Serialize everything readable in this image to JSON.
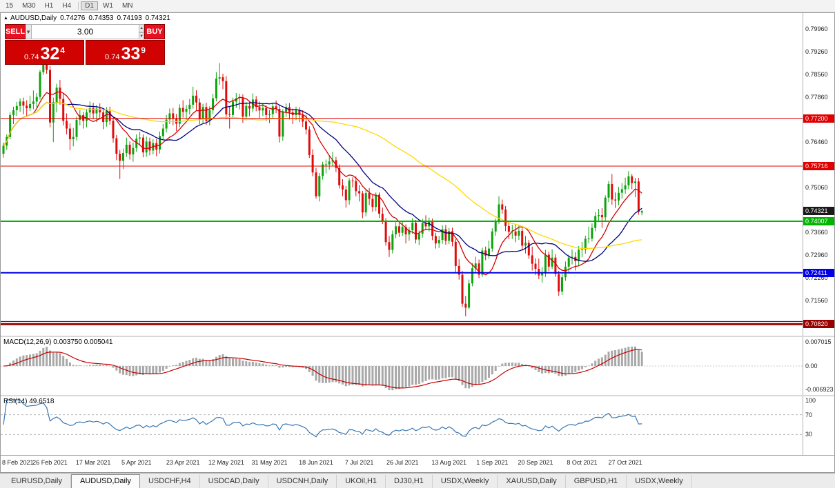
{
  "toolbar": {
    "timeframes": [
      "15",
      "M30",
      "H1",
      "H4",
      "D1",
      "W1",
      "MN"
    ],
    "active": "D1"
  },
  "header": {
    "symbol": "AUDUSD,Daily",
    "open": "0.74276",
    "high": "0.74353",
    "low": "0.74193",
    "close": "0.74321"
  },
  "one_click": {
    "volume": "3.00",
    "sell": {
      "label": "SELL",
      "small": "0.74",
      "big": "32",
      "sup": "4"
    },
    "buy": {
      "label": "BUY",
      "small": "0.74",
      "big": "33",
      "sup": "9"
    }
  },
  "main_chart": {
    "price_top": 0.8046,
    "price_bottom": 0.7046,
    "ticks": [
      "0.79960",
      "0.79260",
      "0.78560",
      "0.77860",
      "0.76460",
      "0.75060",
      "0.73660",
      "0.72960",
      "0.72260",
      "0.71560"
    ],
    "lines": [
      {
        "price": 0.772,
        "label": "0.77200",
        "color": "#e00000",
        "width": 1
      },
      {
        "price": 0.75716,
        "label": "0.75716",
        "color": "#e00000",
        "width": 1
      },
      {
        "price": 0.74007,
        "label": "0.74007",
        "color": "#00b400",
        "width": 2
      },
      {
        "price": 0.72411,
        "label": "0.72411",
        "color": "#0000e6",
        "width": 2
      },
      {
        "price": 0.709,
        "label": "",
        "color": "#000080",
        "width": 1
      },
      {
        "price": 0.7082,
        "label": "0.70820",
        "color": "#990000",
        "width": 3
      }
    ],
    "current_price": {
      "value": 0.74321,
      "label": "0.74321",
      "color": "#1a1a1a"
    },
    "candle_colors": {
      "up": "#0ca30c",
      "down": "#e00b0b"
    },
    "moving_averages": [
      {
        "period": 10,
        "color": "#d40000"
      },
      {
        "period": 20,
        "color": "#000080"
      },
      {
        "period": 60,
        "color": "#ffd800"
      }
    ]
  },
  "chart_data": {
    "type": "candlestick",
    "symbol": "AUDUSD",
    "timeframe": "Daily",
    "x_labels": [
      {
        "text": "8 Feb 2021",
        "bar": 0
      },
      {
        "text": "26 Feb 2021",
        "bar": 14
      },
      {
        "text": "17 Mar 2021",
        "bar": 27
      },
      {
        "text": "5 Apr 2021",
        "bar": 40
      },
      {
        "text": "23 Apr 2021",
        "bar": 54
      },
      {
        "text": "12 May 2021",
        "bar": 67
      },
      {
        "text": "31 May 2021",
        "bar": 80
      },
      {
        "text": "18 Jun 2021",
        "bar": 94
      },
      {
        "text": "7 Jul 2021",
        "bar": 107
      },
      {
        "text": "26 Jul 2021",
        "bar": 120
      },
      {
        "text": "13 Aug 2021",
        "bar": 134
      },
      {
        "text": "1 Sep 2021",
        "bar": 147
      },
      {
        "text": "20 Sep 2021",
        "bar": 160
      },
      {
        "text": "8 Oct 2021",
        "bar": 174
      },
      {
        "text": "27 Oct 2021",
        "bar": 187
      }
    ],
    "candles": [
      [
        0.761,
        0.7645,
        0.7598,
        0.7635
      ],
      [
        0.7635,
        0.767,
        0.7622,
        0.7662
      ],
      [
        0.7662,
        0.7738,
        0.7655,
        0.773
      ],
      [
        0.773,
        0.7756,
        0.7702,
        0.7745
      ],
      [
        0.7745,
        0.7771,
        0.7727,
        0.7758
      ],
      [
        0.7758,
        0.7782,
        0.774,
        0.7772
      ],
      [
        0.7772,
        0.7784,
        0.7732,
        0.7759
      ],
      [
        0.7759,
        0.7776,
        0.7726,
        0.7751
      ],
      [
        0.7751,
        0.779,
        0.7742,
        0.7764
      ],
      [
        0.7764,
        0.7806,
        0.7748,
        0.7772
      ],
      [
        0.7772,
        0.7798,
        0.7753,
        0.7786
      ],
      [
        0.7786,
        0.787,
        0.7778,
        0.7863
      ],
      [
        0.7863,
        0.7948,
        0.7854,
        0.7902
      ],
      [
        0.7902,
        0.7961,
        0.7858,
        0.787
      ],
      [
        0.787,
        0.7882,
        0.7692,
        0.7707
      ],
      [
        0.7707,
        0.7784,
        0.7646,
        0.777
      ],
      [
        0.777,
        0.7827,
        0.7738,
        0.7815
      ],
      [
        0.7815,
        0.7839,
        0.7762,
        0.778
      ],
      [
        0.778,
        0.7796,
        0.7698,
        0.7712
      ],
      [
        0.7712,
        0.7735,
        0.767,
        0.7688
      ],
      [
        0.7688,
        0.7704,
        0.7621,
        0.7655
      ],
      [
        0.7655,
        0.769,
        0.7633,
        0.7662
      ],
      [
        0.7662,
        0.7725,
        0.7651,
        0.7715
      ],
      [
        0.7715,
        0.7746,
        0.7698,
        0.773
      ],
      [
        0.773,
        0.774,
        0.7688,
        0.7712
      ],
      [
        0.7712,
        0.7747,
        0.7692,
        0.7738
      ],
      [
        0.7738,
        0.7772,
        0.772,
        0.7752
      ],
      [
        0.7752,
        0.7768,
        0.7717,
        0.7735
      ],
      [
        0.7735,
        0.7761,
        0.7708,
        0.775
      ],
      [
        0.775,
        0.7766,
        0.7721,
        0.7738
      ],
      [
        0.7738,
        0.775,
        0.7686,
        0.7708
      ],
      [
        0.7708,
        0.7755,
        0.7694,
        0.7742
      ],
      [
        0.7742,
        0.7756,
        0.77,
        0.7712
      ],
      [
        0.7712,
        0.7722,
        0.7645,
        0.7658
      ],
      [
        0.7658,
        0.7668,
        0.759,
        0.761
      ],
      [
        0.761,
        0.7622,
        0.7532,
        0.7588
      ],
      [
        0.7588,
        0.7626,
        0.7562,
        0.7612
      ],
      [
        0.7612,
        0.766,
        0.76,
        0.7638
      ],
      [
        0.7638,
        0.7648,
        0.7592,
        0.7608
      ],
      [
        0.7608,
        0.7645,
        0.7585,
        0.7628
      ],
      [
        0.7628,
        0.767,
        0.7616,
        0.7657
      ],
      [
        0.7657,
        0.7678,
        0.7637,
        0.766
      ],
      [
        0.766,
        0.767,
        0.7599,
        0.7614
      ],
      [
        0.7614,
        0.7663,
        0.7601,
        0.7648
      ],
      [
        0.7648,
        0.766,
        0.7605,
        0.762
      ],
      [
        0.762,
        0.7655,
        0.7608,
        0.7643
      ],
      [
        0.7643,
        0.7655,
        0.7602,
        0.7623
      ],
      [
        0.7623,
        0.7679,
        0.7611,
        0.7665
      ],
      [
        0.7665,
        0.7702,
        0.7652,
        0.7688
      ],
      [
        0.7688,
        0.773,
        0.7676,
        0.7716
      ],
      [
        0.7716,
        0.775,
        0.7702,
        0.7735
      ],
      [
        0.7735,
        0.7752,
        0.7698,
        0.7718
      ],
      [
        0.7718,
        0.7733,
        0.768,
        0.7703
      ],
      [
        0.7703,
        0.7763,
        0.7692,
        0.7752
      ],
      [
        0.7752,
        0.7776,
        0.7722,
        0.774
      ],
      [
        0.774,
        0.7761,
        0.7715,
        0.7749
      ],
      [
        0.7749,
        0.778,
        0.7731,
        0.7762
      ],
      [
        0.7762,
        0.7818,
        0.775,
        0.779
      ],
      [
        0.779,
        0.7807,
        0.7745,
        0.7769
      ],
      [
        0.7769,
        0.7782,
        0.7701,
        0.7716
      ],
      [
        0.7716,
        0.7765,
        0.7706,
        0.7755
      ],
      [
        0.7755,
        0.7768,
        0.77,
        0.7712
      ],
      [
        0.7712,
        0.7757,
        0.7698,
        0.7745
      ],
      [
        0.7745,
        0.7796,
        0.7733,
        0.7782
      ],
      [
        0.7782,
        0.7863,
        0.7772,
        0.7843
      ],
      [
        0.7843,
        0.7891,
        0.7824,
        0.7847
      ],
      [
        0.7847,
        0.7858,
        0.781,
        0.7835
      ],
      [
        0.7835,
        0.7851,
        0.7717,
        0.7732
      ],
      [
        0.7732,
        0.7758,
        0.7688,
        0.773
      ],
      [
        0.773,
        0.7784,
        0.772,
        0.7772
      ],
      [
        0.7772,
        0.7798,
        0.7752,
        0.7782
      ],
      [
        0.7782,
        0.7796,
        0.7747,
        0.7785
      ],
      [
        0.7785,
        0.7794,
        0.7706,
        0.7725
      ],
      [
        0.7725,
        0.777,
        0.7713,
        0.7758
      ],
      [
        0.7758,
        0.7772,
        0.7726,
        0.775
      ],
      [
        0.775,
        0.7797,
        0.7738,
        0.7778
      ],
      [
        0.7778,
        0.7789,
        0.7742,
        0.7755
      ],
      [
        0.7755,
        0.7772,
        0.772,
        0.7744
      ],
      [
        0.7744,
        0.7768,
        0.7727,
        0.7752
      ],
      [
        0.7752,
        0.776,
        0.7712,
        0.773
      ],
      [
        0.773,
        0.7746,
        0.7705,
        0.7733
      ],
      [
        0.7733,
        0.7768,
        0.7721,
        0.7757
      ],
      [
        0.7757,
        0.7775,
        0.7736,
        0.7749
      ],
      [
        0.7749,
        0.7762,
        0.7645,
        0.7663
      ],
      [
        0.7663,
        0.7748,
        0.765,
        0.774
      ],
      [
        0.774,
        0.7766,
        0.7724,
        0.7755
      ],
      [
        0.7755,
        0.7767,
        0.7716,
        0.7738
      ],
      [
        0.7738,
        0.775,
        0.7702,
        0.773
      ],
      [
        0.773,
        0.7756,
        0.7714,
        0.7745
      ],
      [
        0.7745,
        0.7755,
        0.7708,
        0.773
      ],
      [
        0.773,
        0.7745,
        0.7693,
        0.771
      ],
      [
        0.771,
        0.773,
        0.767,
        0.7685
      ],
      [
        0.7685,
        0.7695,
        0.7597,
        0.7606
      ],
      [
        0.7606,
        0.7624,
        0.754,
        0.7552
      ],
      [
        0.7552,
        0.7566,
        0.7471,
        0.7478
      ],
      [
        0.7478,
        0.755,
        0.7462,
        0.7541
      ],
      [
        0.7541,
        0.7585,
        0.753,
        0.7577
      ],
      [
        0.7577,
        0.7592,
        0.7549,
        0.7577
      ],
      [
        0.7577,
        0.7604,
        0.7561,
        0.7586
      ],
      [
        0.7586,
        0.7616,
        0.7571,
        0.759
      ],
      [
        0.759,
        0.76,
        0.7553,
        0.7566
      ],
      [
        0.7566,
        0.7577,
        0.7502,
        0.7512
      ],
      [
        0.7512,
        0.7531,
        0.7478,
        0.7499
      ],
      [
        0.7499,
        0.751,
        0.7443,
        0.7466
      ],
      [
        0.7466,
        0.7534,
        0.7452,
        0.7527
      ],
      [
        0.7527,
        0.7537,
        0.7506,
        0.7525
      ],
      [
        0.7525,
        0.754,
        0.7478,
        0.7494
      ],
      [
        0.7494,
        0.7513,
        0.7462,
        0.7487
      ],
      [
        0.7487,
        0.7495,
        0.741,
        0.7428
      ],
      [
        0.7428,
        0.7497,
        0.7416,
        0.7488
      ],
      [
        0.7488,
        0.7503,
        0.7451,
        0.747
      ],
      [
        0.747,
        0.7485,
        0.743,
        0.7445
      ],
      [
        0.7445,
        0.749,
        0.7432,
        0.7483
      ],
      [
        0.7483,
        0.749,
        0.7411,
        0.7424
      ],
      [
        0.7424,
        0.7443,
        0.7392,
        0.7401
      ],
      [
        0.7401,
        0.741,
        0.7325,
        0.7336
      ],
      [
        0.7336,
        0.7355,
        0.729,
        0.7312
      ],
      [
        0.7312,
        0.7372,
        0.7301,
        0.736
      ],
      [
        0.736,
        0.7398,
        0.7348,
        0.7385
      ],
      [
        0.7385,
        0.7395,
        0.7352,
        0.7365
      ],
      [
        0.7365,
        0.74,
        0.7355,
        0.7383
      ],
      [
        0.7383,
        0.7391,
        0.7332,
        0.736
      ],
      [
        0.736,
        0.7383,
        0.734,
        0.7373
      ],
      [
        0.7373,
        0.741,
        0.7362,
        0.7396
      ],
      [
        0.7396,
        0.7405,
        0.7332,
        0.7344
      ],
      [
        0.7344,
        0.7372,
        0.7327,
        0.7362
      ],
      [
        0.7362,
        0.7408,
        0.735,
        0.7395
      ],
      [
        0.7395,
        0.7419,
        0.7373,
        0.7385
      ],
      [
        0.7385,
        0.7412,
        0.7369,
        0.7401
      ],
      [
        0.7401,
        0.7409,
        0.7342,
        0.7355
      ],
      [
        0.7355,
        0.7365,
        0.7316,
        0.7332
      ],
      [
        0.7332,
        0.7355,
        0.7318,
        0.7343
      ],
      [
        0.7343,
        0.7388,
        0.7331,
        0.7376
      ],
      [
        0.7376,
        0.7389,
        0.7328,
        0.734
      ],
      [
        0.734,
        0.738,
        0.733,
        0.737
      ],
      [
        0.737,
        0.7381,
        0.7323,
        0.7337
      ],
      [
        0.7337,
        0.7345,
        0.7242,
        0.7262
      ],
      [
        0.7262,
        0.7283,
        0.722,
        0.7235
      ],
      [
        0.7235,
        0.7247,
        0.7135,
        0.7145
      ],
      [
        0.7145,
        0.7169,
        0.7106,
        0.7133
      ],
      [
        0.7133,
        0.722,
        0.7128,
        0.7208
      ],
      [
        0.7208,
        0.7271,
        0.7199,
        0.7255
      ],
      [
        0.7255,
        0.7291,
        0.7242,
        0.727
      ],
      [
        0.727,
        0.7282,
        0.7224,
        0.7235
      ],
      [
        0.7235,
        0.7319,
        0.7228,
        0.731
      ],
      [
        0.731,
        0.7322,
        0.728,
        0.7294
      ],
      [
        0.7294,
        0.7341,
        0.7285,
        0.7316
      ],
      [
        0.7316,
        0.7379,
        0.7306,
        0.7369
      ],
      [
        0.7369,
        0.7409,
        0.7356,
        0.74
      ],
      [
        0.74,
        0.7478,
        0.7392,
        0.7453
      ],
      [
        0.7453,
        0.7468,
        0.7424,
        0.7437
      ],
      [
        0.7437,
        0.7448,
        0.737,
        0.7386
      ],
      [
        0.7386,
        0.7403,
        0.7345,
        0.7368
      ],
      [
        0.7368,
        0.739,
        0.7346,
        0.7369
      ],
      [
        0.7369,
        0.739,
        0.7336,
        0.7356
      ],
      [
        0.7356,
        0.7389,
        0.7343,
        0.7371
      ],
      [
        0.7371,
        0.7384,
        0.731,
        0.7325
      ],
      [
        0.7325,
        0.7355,
        0.7301,
        0.7334
      ],
      [
        0.7334,
        0.7343,
        0.7284,
        0.7295
      ],
      [
        0.7295,
        0.7322,
        0.7248,
        0.7269
      ],
      [
        0.7269,
        0.7286,
        0.7234,
        0.7253
      ],
      [
        0.7253,
        0.7285,
        0.7221,
        0.7233
      ],
      [
        0.7233,
        0.7259,
        0.721,
        0.7239
      ],
      [
        0.7239,
        0.7312,
        0.7228,
        0.7297
      ],
      [
        0.7297,
        0.7307,
        0.7246,
        0.726
      ],
      [
        0.726,
        0.7314,
        0.7252,
        0.7288
      ],
      [
        0.7288,
        0.7299,
        0.7228,
        0.7237
      ],
      [
        0.7237,
        0.7247,
        0.717,
        0.7183
      ],
      [
        0.7183,
        0.724,
        0.7172,
        0.7227
      ],
      [
        0.7227,
        0.7276,
        0.7216,
        0.726
      ],
      [
        0.726,
        0.7297,
        0.724,
        0.7288
      ],
      [
        0.7288,
        0.7313,
        0.7267,
        0.729
      ],
      [
        0.729,
        0.7305,
        0.7248,
        0.7277
      ],
      [
        0.7277,
        0.7324,
        0.7264,
        0.7312
      ],
      [
        0.7312,
        0.7337,
        0.7289,
        0.7313
      ],
      [
        0.7313,
        0.7356,
        0.73,
        0.7346
      ],
      [
        0.7346,
        0.7384,
        0.7333,
        0.7347
      ],
      [
        0.7347,
        0.7394,
        0.7338,
        0.738
      ],
      [
        0.738,
        0.7429,
        0.737,
        0.7417
      ],
      [
        0.7417,
        0.7439,
        0.7398,
        0.742
      ],
      [
        0.742,
        0.7441,
        0.738,
        0.7413
      ],
      [
        0.7413,
        0.7481,
        0.7403,
        0.7474
      ],
      [
        0.7474,
        0.7525,
        0.746,
        0.7516
      ],
      [
        0.7516,
        0.7547,
        0.7452,
        0.7468
      ],
      [
        0.7468,
        0.749,
        0.7442,
        0.7465
      ],
      [
        0.7465,
        0.7507,
        0.745,
        0.7489
      ],
      [
        0.7489,
        0.7519,
        0.7471,
        0.75
      ],
      [
        0.75,
        0.7536,
        0.7486,
        0.7512
      ],
      [
        0.7512,
        0.7556,
        0.75,
        0.754
      ],
      [
        0.754,
        0.7547,
        0.75,
        0.7519
      ],
      [
        0.7519,
        0.7535,
        0.7475,
        0.7524
      ],
      [
        0.7524,
        0.7535,
        0.7421,
        0.743
      ],
      [
        0.74276,
        0.74353,
        0.74193,
        0.74321
      ]
    ]
  },
  "macd": {
    "label": "MACD(12,26,9) 0.003750 0.005041",
    "fast": 12,
    "slow": 26,
    "signal": 9,
    "axis": [
      "0.007015",
      "0.00",
      "-0.006923"
    ],
    "hist_color": "#a8a8a8",
    "line_color": "#c80000"
  },
  "rsi": {
    "label": "RSI(14) 49.6518",
    "period": 14,
    "axis_top": "100",
    "levels": [
      {
        "v": 70,
        "label": "70"
      },
      {
        "v": 30,
        "label": "30"
      }
    ],
    "color": "#3576b5"
  },
  "tabs": {
    "active_index": 1,
    "items": [
      "EURUSD,Daily",
      "AUDUSD,Daily",
      "USDCHF,H4",
      "USDCAD,Daily",
      "USDCNH,Daily",
      "UKOil,H1",
      "DJ30,H1",
      "USDX,Weekly",
      "XAUUSD,Daily",
      "GBPUSD,H1",
      "USDX,Weekly"
    ]
  }
}
